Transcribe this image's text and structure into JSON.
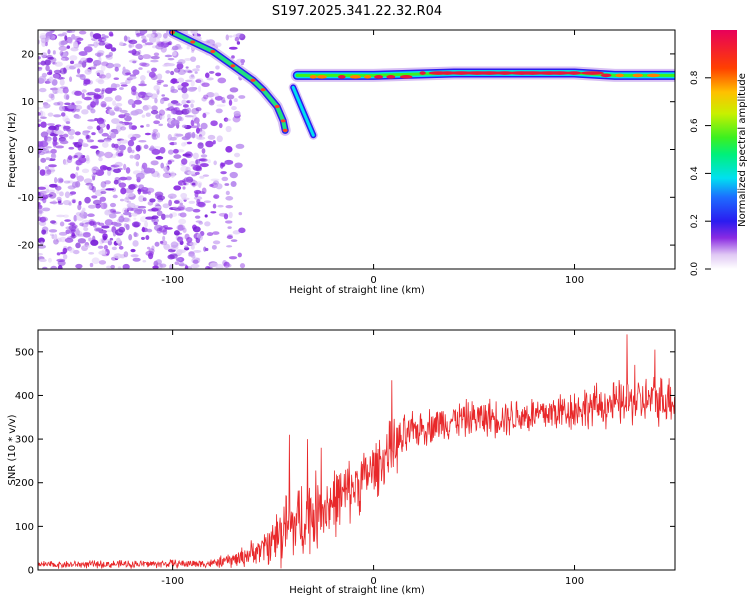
{
  "title": "S197.2025.341.22.32.R04",
  "colors": {
    "snr_line": "#e8282a",
    "axis": "#000000",
    "spectrogram_noise": "#8a2be2"
  },
  "chart_data": [
    {
      "type": "heatmap",
      "name": "spectrogram",
      "xlabel": "Height of straight line (km)",
      "ylabel": "Frequency (Hz)",
      "xlim": [
        -167,
        150
      ],
      "ylim": [
        -25,
        25
      ],
      "xticks": [
        -100,
        0,
        100
      ],
      "xtick_labels": [
        "-100",
        "0",
        "100"
      ],
      "yticks": [
        -20,
        -10,
        0,
        10,
        20
      ],
      "ytick_labels": [
        "-20",
        "-10",
        "0",
        "10",
        "20"
      ],
      "colorbar": {
        "label": "Normalized spectral amplitude",
        "range": [
          0,
          1
        ],
        "ticks": [
          0.0,
          0.2,
          0.4,
          0.6,
          0.8
        ],
        "tick_labels": [
          "0.0",
          "0.2",
          "0.4",
          "0.6",
          "0.8"
        ]
      },
      "features": {
        "noise_region_x": [
          -167,
          -65
        ],
        "descending_trace": [
          [
            -100,
            24.5
          ],
          [
            -90,
            22.5
          ],
          [
            -80,
            20.5
          ],
          [
            -70,
            17.5
          ],
          [
            -60,
            14.5
          ],
          [
            -55,
            12.5
          ],
          [
            -48,
            9
          ],
          [
            -45,
            6
          ],
          [
            -44,
            4
          ]
        ],
        "branch_trace": [
          [
            -40,
            13
          ],
          [
            -35,
            8
          ],
          [
            -30,
            3
          ]
        ],
        "carrier_trace": [
          [
            -38,
            15.5
          ],
          [
            -30,
            15.5
          ],
          [
            0,
            15.5
          ],
          [
            40,
            16
          ],
          [
            80,
            16
          ],
          [
            100,
            16
          ],
          [
            120,
            15.5
          ],
          [
            150,
            15.5
          ]
        ]
      }
    },
    {
      "type": "line",
      "name": "snr",
      "xlabel": "Height of straight line (km)",
      "ylabel": "SNR (10 * v/v)",
      "xlim": [
        -167,
        150
      ],
      "ylim": [
        0,
        550
      ],
      "xticks": [
        -100,
        0,
        100
      ],
      "xtick_labels": [
        "-100",
        "0",
        "100"
      ],
      "yticks": [
        0,
        100,
        200,
        300,
        400,
        500
      ],
      "ytick_labels": [
        "0",
        "100",
        "200",
        "300",
        "400",
        "500"
      ],
      "envelope": [
        {
          "x": -167,
          "base": 12,
          "amp": 10
        },
        {
          "x": -80,
          "base": 15,
          "amp": 12
        },
        {
          "x": -68,
          "base": 25,
          "amp": 25
        },
        {
          "x": -55,
          "base": 50,
          "amp": 40
        },
        {
          "x": -45,
          "base": 90,
          "amp": 110
        },
        {
          "x": -30,
          "base": 130,
          "amp": 110
        },
        {
          "x": -15,
          "base": 170,
          "amp": 90
        },
        {
          "x": 0,
          "base": 230,
          "amp": 80
        },
        {
          "x": 10,
          "base": 280,
          "amp": 80
        },
        {
          "x": 20,
          "base": 320,
          "amp": 50
        },
        {
          "x": 40,
          "base": 345,
          "amp": 50
        },
        {
          "x": 80,
          "base": 355,
          "amp": 55
        },
        {
          "x": 110,
          "base": 375,
          "amp": 60
        },
        {
          "x": 150,
          "base": 395,
          "amp": 70
        }
      ],
      "spikes": [
        [
          -42,
          310
        ],
        [
          -33,
          300
        ],
        [
          -26,
          280
        ],
        [
          9,
          435
        ],
        [
          126,
          540
        ],
        [
          130,
          470
        ],
        [
          140,
          505
        ]
      ]
    }
  ]
}
